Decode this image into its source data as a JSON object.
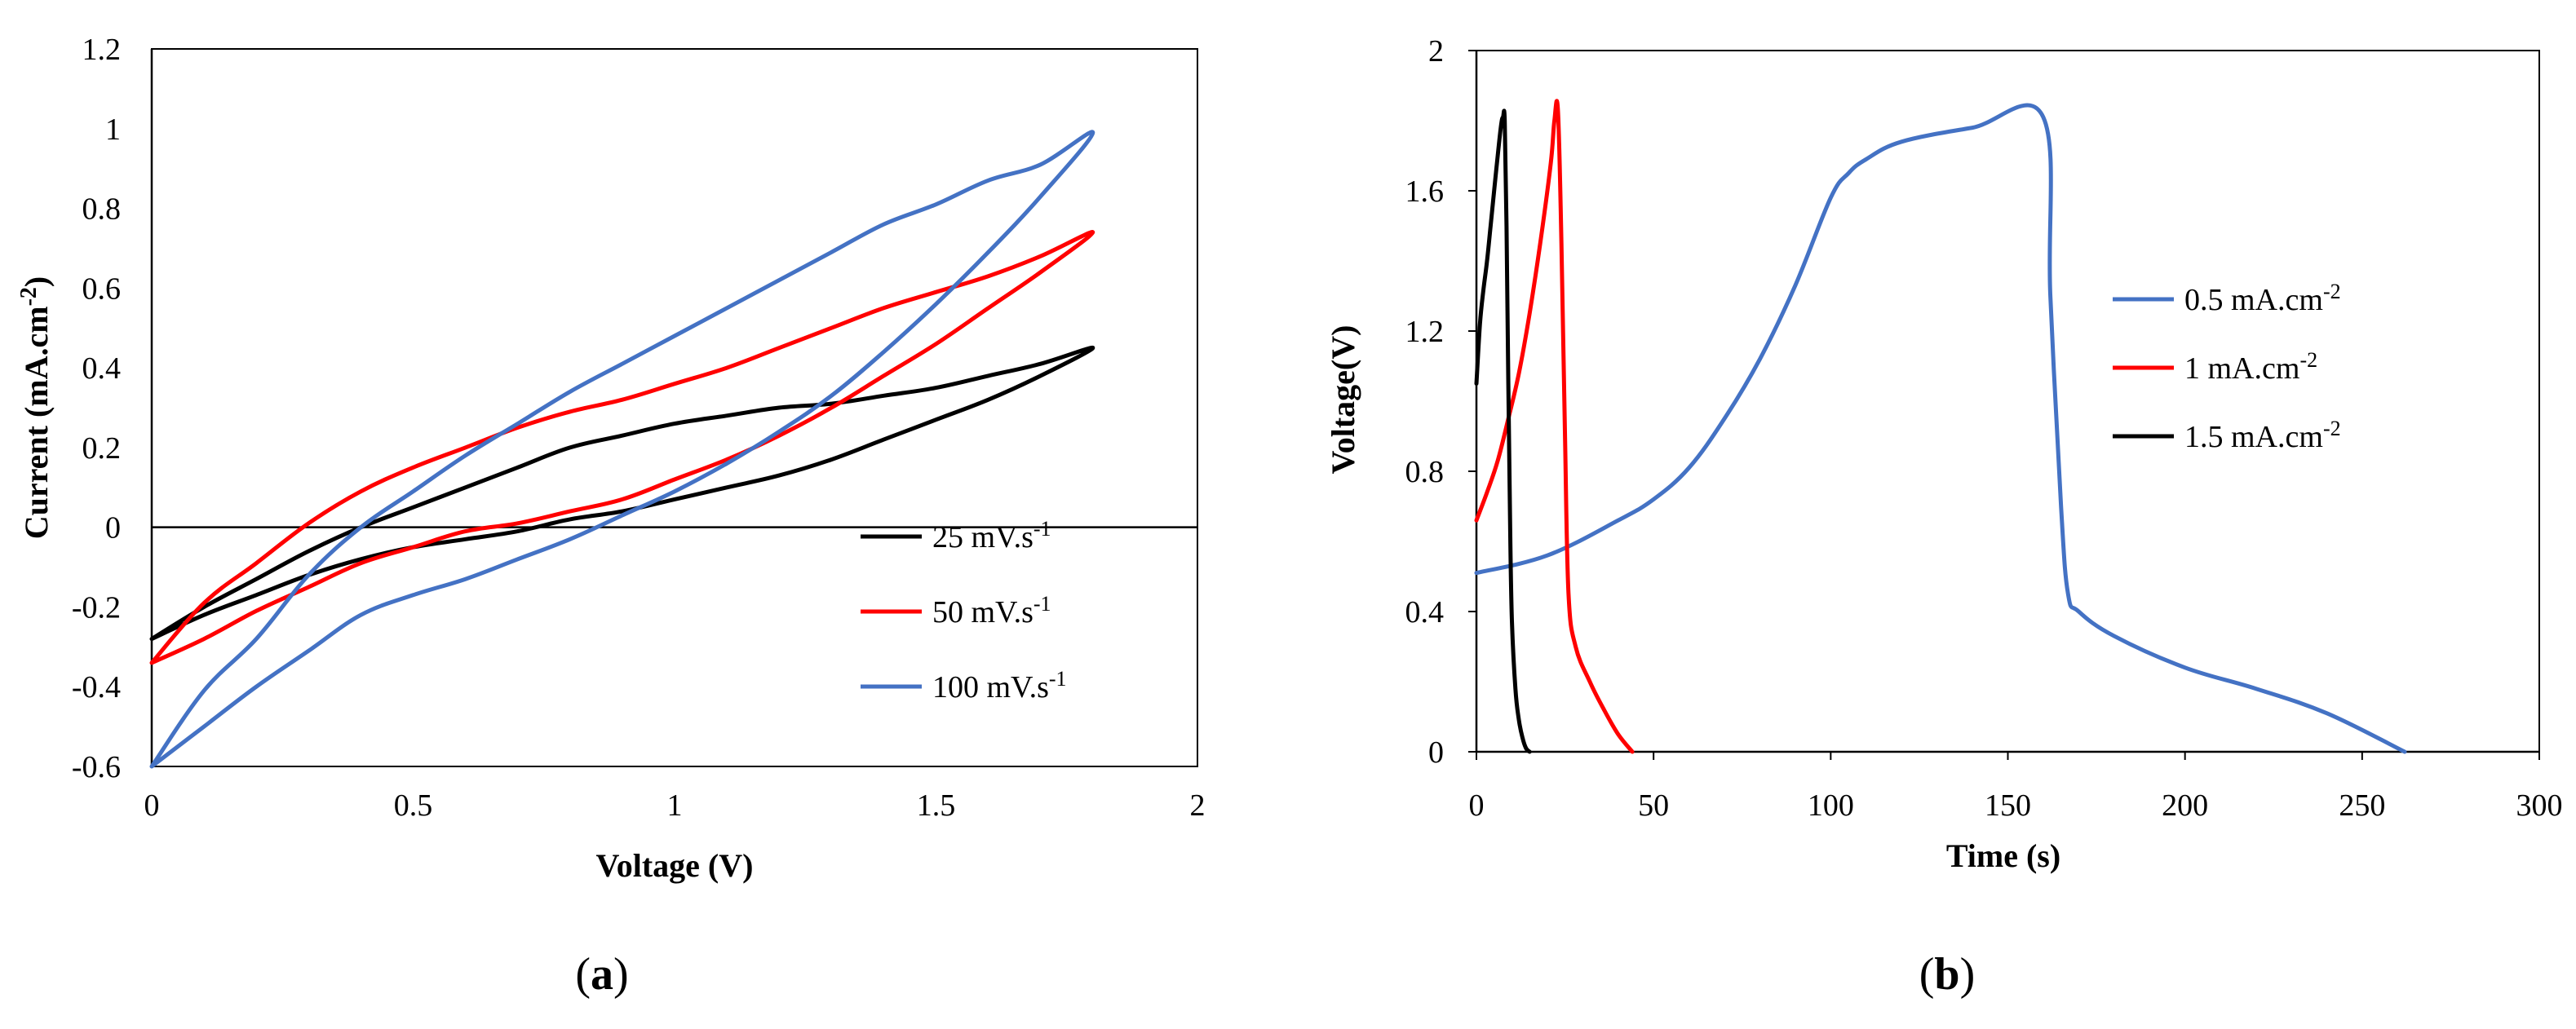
{
  "chart_data": [
    {
      "panel": "a",
      "type": "line",
      "xlabel": "Voltage (V)",
      "ylabel_main": "Current (mA.cm",
      "ylabel_sup": "-2",
      "ylabel_tail": ")",
      "xlim": [
        0,
        2
      ],
      "ylim": [
        -0.6,
        1.2
      ],
      "xticks": [
        "0",
        "0.5",
        "1",
        "1.5",
        "2"
      ],
      "yticks": [
        "-0.6",
        "-0.4",
        "-0.2",
        "0",
        "0.2",
        "0.4",
        "0.6",
        "0.8",
        "1",
        "1.2"
      ],
      "series": [
        {
          "name": "25 mV.s",
          "name_sup": "-1",
          "color": "#000000",
          "x": [
            0.0,
            0.1,
            0.2,
            0.3,
            0.4,
            0.5,
            0.6,
            0.7,
            0.8,
            0.9,
            1.0,
            1.1,
            1.2,
            1.3,
            1.4,
            1.5,
            1.6,
            1.7,
            1.8,
            1.7,
            1.6,
            1.5,
            1.4,
            1.3,
            1.2,
            1.1,
            1.0,
            0.9,
            0.8,
            0.7,
            0.6,
            0.5,
            0.4,
            0.3,
            0.2,
            0.1,
            0.0
          ],
          "y": [
            -0.28,
            -0.2,
            -0.13,
            -0.06,
            0.0,
            0.05,
            0.1,
            0.15,
            0.2,
            0.23,
            0.26,
            0.28,
            0.3,
            0.31,
            0.33,
            0.35,
            0.38,
            0.41,
            0.45,
            0.38,
            0.32,
            0.27,
            0.22,
            0.17,
            0.13,
            0.1,
            0.07,
            0.04,
            0.02,
            -0.01,
            -0.03,
            -0.05,
            -0.08,
            -0.12,
            -0.17,
            -0.22,
            -0.28
          ]
        },
        {
          "name": "50 mV.s",
          "name_sup": "-1",
          "color": "#ff0000",
          "x": [
            0.0,
            0.1,
            0.2,
            0.3,
            0.4,
            0.5,
            0.6,
            0.7,
            0.8,
            0.9,
            1.0,
            1.1,
            1.2,
            1.3,
            1.4,
            1.5,
            1.6,
            1.7,
            1.8,
            1.7,
            1.6,
            1.5,
            1.4,
            1.3,
            1.2,
            1.1,
            1.0,
            0.9,
            0.8,
            0.7,
            0.6,
            0.5,
            0.4,
            0.3,
            0.2,
            0.1,
            0.0
          ],
          "y": [
            -0.34,
            -0.19,
            -0.09,
            0.01,
            0.09,
            0.15,
            0.2,
            0.25,
            0.29,
            0.32,
            0.36,
            0.4,
            0.45,
            0.5,
            0.55,
            0.59,
            0.63,
            0.68,
            0.74,
            0.64,
            0.55,
            0.46,
            0.38,
            0.3,
            0.23,
            0.17,
            0.12,
            0.07,
            0.04,
            0.01,
            -0.01,
            -0.05,
            -0.09,
            -0.15,
            -0.21,
            -0.28,
            -0.34
          ]
        },
        {
          "name": "100 mV.s",
          "name_sup": "-1",
          "color": "#4472c4",
          "x": [
            0.0,
            0.1,
            0.2,
            0.3,
            0.4,
            0.5,
            0.6,
            0.7,
            0.8,
            0.9,
            1.0,
            1.1,
            1.2,
            1.3,
            1.4,
            1.5,
            1.6,
            1.7,
            1.8,
            1.7,
            1.6,
            1.5,
            1.4,
            1.3,
            1.2,
            1.1,
            1.0,
            0.9,
            0.8,
            0.7,
            0.6,
            0.5,
            0.4,
            0.3,
            0.2,
            0.1,
            0.0
          ],
          "y": [
            -0.6,
            -0.41,
            -0.28,
            -0.12,
            0.0,
            0.09,
            0.18,
            0.26,
            0.34,
            0.41,
            0.48,
            0.55,
            0.62,
            0.69,
            0.76,
            0.81,
            0.87,
            0.91,
            0.99,
            0.83,
            0.69,
            0.56,
            0.44,
            0.33,
            0.24,
            0.16,
            0.09,
            0.03,
            -0.03,
            -0.08,
            -0.13,
            -0.17,
            -0.22,
            -0.31,
            -0.4,
            -0.5,
            -0.6
          ]
        }
      ]
    },
    {
      "panel": "b",
      "type": "line",
      "xlabel": "Time (s)",
      "ylabel_main": "Voltage(V)",
      "ylabel_sup": "",
      "ylabel_tail": "",
      "xlim": [
        0,
        300
      ],
      "ylim": [
        0,
        2
      ],
      "xticks": [
        "0",
        "50",
        "100",
        "150",
        "200",
        "250",
        "300"
      ],
      "yticks": [
        "0",
        "0.4",
        "0.8",
        "1.2",
        "1.6",
        "2"
      ],
      "series": [
        {
          "name": "0.5 mA.cm",
          "name_sup": "-2",
          "color": "#4472c4",
          "x": [
            0,
            20,
            40,
            50,
            60,
            70,
            80,
            90,
            100,
            105,
            110,
            120,
            140,
            160,
            162,
            165,
            167,
            170,
            180,
            200,
            220,
            240,
            262
          ],
          "y": [
            0.51,
            0.56,
            0.66,
            0.72,
            0.81,
            0.95,
            1.12,
            1.33,
            1.58,
            1.65,
            1.69,
            1.74,
            1.78,
            1.81,
            1.3,
            0.7,
            0.45,
            0.4,
            0.33,
            0.24,
            0.18,
            0.11,
            0.0
          ]
        },
        {
          "name": "1 mA.cm",
          "name_sup": "-2",
          "color": "#ff0000",
          "x": [
            0,
            3,
            6,
            9,
            12,
            15,
            18,
            21,
            22,
            23,
            24,
            25,
            26,
            28,
            32,
            36,
            40,
            44
          ],
          "y": [
            0.66,
            0.74,
            0.83,
            0.95,
            1.08,
            1.25,
            1.45,
            1.68,
            1.8,
            1.83,
            1.45,
            0.9,
            0.45,
            0.3,
            0.2,
            0.12,
            0.05,
            0.0
          ]
        },
        {
          "name": "1.5 mA.cm",
          "name_sup": "-2",
          "color": "#000000",
          "x": [
            0,
            1,
            2,
            3,
            4,
            5,
            6,
            7,
            7.5,
            8,
            8.5,
            9,
            9.5,
            10,
            11,
            12,
            13,
            14,
            15
          ],
          "y": [
            1.05,
            1.22,
            1.32,
            1.4,
            1.5,
            1.6,
            1.7,
            1.79,
            1.81,
            1.8,
            1.5,
            1.05,
            0.65,
            0.38,
            0.18,
            0.09,
            0.04,
            0.01,
            0.0
          ]
        }
      ]
    }
  ],
  "labels": {
    "a": {
      "open": "(",
      "letter": "a",
      "close": ")"
    },
    "b": {
      "open": "(",
      "letter": "b",
      "close": ")"
    }
  }
}
